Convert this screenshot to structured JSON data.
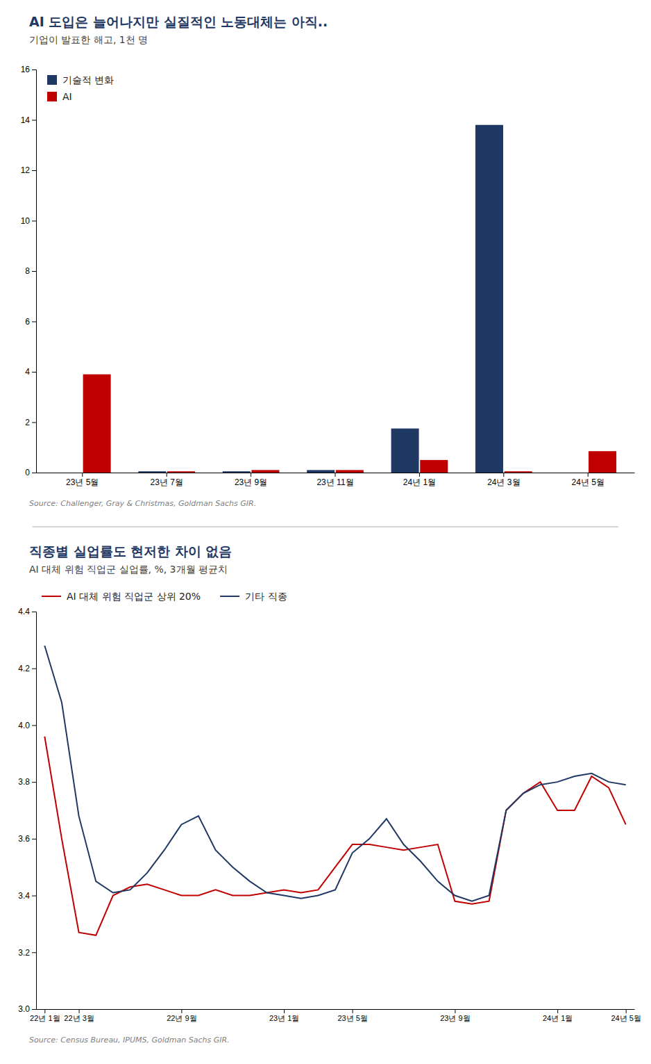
{
  "chart_data": [
    {
      "type": "bar",
      "title": "AI 도입은 늘어나지만 실질적인 노동대체는 아직..",
      "subtitle": "기업이 발표한 해고, 1천 명",
      "source": "Source: Challenger, Gray & Christmas, Goldman Sachs GIR.",
      "categories": [
        "23년 5월",
        "23년 7월",
        "23년 9월",
        "23년 11월",
        "24년 1월",
        "24년 3월",
        "24년 5월"
      ],
      "series": [
        {
          "name": "기술적 변화",
          "color": "#1F3864",
          "values": [
            0.0,
            0.05,
            0.05,
            0.1,
            1.75,
            13.8,
            0.0
          ]
        },
        {
          "name": "AI",
          "color": "#C00000",
          "values": [
            3.9,
            0.05,
            0.1,
            0.1,
            0.5,
            0.05,
            0.85
          ]
        }
      ],
      "ylim": [
        0,
        16
      ],
      "yticks": [
        0,
        2,
        4,
        6,
        8,
        10,
        12,
        14,
        16
      ],
      "grid": false,
      "legend": "upper left"
    },
    {
      "type": "line",
      "title": "직종별 실업률도 현저한 차이 없음",
      "subtitle": "AI 대체 위험 직업군 실업률, %, 3개월 평균치",
      "source": "Source: Census Bureau, IPUMS, Goldman Sachs GIR.",
      "categories": [
        "22년 1월",
        null,
        "22년 3월",
        null,
        null,
        null,
        null,
        null,
        "22년 9월",
        null,
        null,
        null,
        null,
        null,
        "23년 1월",
        null,
        null,
        null,
        "23년 5월",
        null,
        null,
        null,
        null,
        null,
        "23년 9월",
        null,
        null,
        null,
        null,
        null,
        "24년 1월",
        null,
        null,
        null,
        "24년 5월"
      ],
      "series": [
        {
          "name": "AI 대체 위험 직업군 상위 20%",
          "color": "#C00000",
          "values": [
            3.96,
            3.6,
            3.27,
            3.26,
            3.4,
            3.43,
            3.44,
            3.42,
            3.4,
            3.4,
            3.42,
            3.4,
            3.4,
            3.41,
            3.42,
            3.41,
            3.42,
            3.5,
            3.58,
            3.58,
            3.57,
            3.56,
            3.57,
            3.58,
            3.38,
            3.37,
            3.38,
            3.7,
            3.76,
            3.8,
            3.7,
            3.7,
            3.82,
            3.78,
            3.65
          ]
        },
        {
          "name": "기타 직종",
          "color": "#1F3864",
          "values": [
            4.28,
            4.08,
            3.68,
            3.45,
            3.41,
            3.42,
            3.48,
            3.56,
            3.65,
            3.68,
            3.56,
            3.5,
            3.45,
            3.41,
            3.4,
            3.39,
            3.4,
            3.42,
            3.55,
            3.6,
            3.67,
            3.58,
            3.52,
            3.45,
            3.4,
            3.38,
            3.4,
            3.7,
            3.76,
            3.79,
            3.8,
            3.82,
            3.83,
            3.8,
            3.79
          ]
        }
      ],
      "ylim": [
        3.0,
        4.4
      ],
      "yticks": [
        {
          "value": 3.0,
          "label": "3.0"
        },
        3.2,
        3.4,
        3.6,
        3.8,
        {
          "value": 4.0,
          "label": "4.0"
        },
        4.2,
        4.4
      ],
      "grid": false,
      "legend": "upper left"
    }
  ]
}
